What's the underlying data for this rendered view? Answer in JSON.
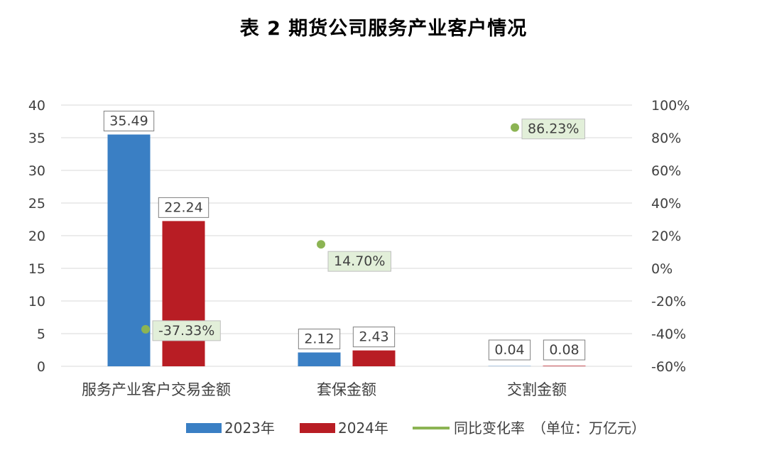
{
  "title": "表 2 期货公司服务产业客户情况",
  "colors": {
    "s2023": "#3A7FC4",
    "s2024": "#B81D24",
    "yoy": "#8CB453",
    "yoy_label_bg": "#E2EFD9",
    "grid": "#D9D9D9"
  },
  "legend": {
    "s2023": "2023年",
    "s2024": "2024年",
    "yoy": "同比变化率",
    "unit": "（单位：万亿元）"
  },
  "chart_data": {
    "type": "bar",
    "categories": [
      "服务产业客户交易金额",
      "套保金额",
      "交割金额"
    ],
    "series": [
      {
        "name": "2023年",
        "values": [
          35.49,
          2.12,
          0.04
        ],
        "labels": [
          "35.49",
          "2.12",
          "0.04"
        ]
      },
      {
        "name": "2024年",
        "values": [
          22.24,
          2.43,
          0.08
        ],
        "labels": [
          "22.24",
          "2.43",
          "0.08"
        ]
      }
    ],
    "line_series": {
      "name": "同比变化率",
      "values": [
        -37.33,
        14.7,
        86.23
      ],
      "labels": [
        "-37.33%",
        "14.70%",
        "86.23%"
      ]
    },
    "y_left": {
      "min": 0,
      "max": 40,
      "ticks": [
        "0",
        "5",
        "10",
        "15",
        "20",
        "25",
        "30",
        "35",
        "40"
      ]
    },
    "y_right": {
      "min": -60,
      "max": 100,
      "ticks": [
        "-60%",
        "-40%",
        "-20%",
        "0%",
        "20%",
        "40%",
        "60%",
        "80%",
        "100%"
      ]
    },
    "grid": true,
    "legend_position": "bottom"
  }
}
